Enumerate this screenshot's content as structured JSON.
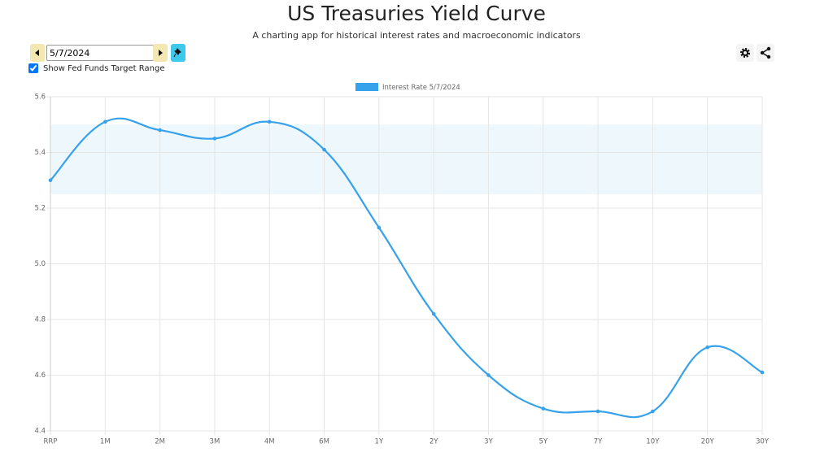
{
  "header": {
    "title": "US Treasuries Yield Curve",
    "subtitle": "A charting app for historical interest rates and macroeconomic indicators"
  },
  "controls": {
    "date": "5/7/2024",
    "checkbox_label": "Show Fed Funds Target Range",
    "checked": true
  },
  "chart_data": {
    "type": "line",
    "categories": [
      "RRP",
      "1M",
      "2M",
      "3M",
      "4M",
      "6M",
      "1Y",
      "2Y",
      "3Y",
      "5Y",
      "7Y",
      "10Y",
      "20Y",
      "30Y"
    ],
    "series": [
      {
        "name": "Interest Rate 5/7/2024",
        "color": "#36a2eb",
        "values": [
          5.3,
          5.51,
          5.48,
          5.45,
          5.51,
          5.41,
          5.13,
          4.82,
          4.6,
          4.48,
          4.47,
          4.47,
          4.7,
          4.61
        ]
      }
    ],
    "band": [
      5.25,
      5.5
    ],
    "band_color": "#eef7fc",
    "ylim": [
      4.4,
      5.6
    ],
    "yticks": [
      4.4,
      4.6,
      4.8,
      {
        "value": 5,
        "label": "5.0"
      },
      5.2,
      5.4,
      5.6
    ],
    "grid": true,
    "legend": "top"
  }
}
